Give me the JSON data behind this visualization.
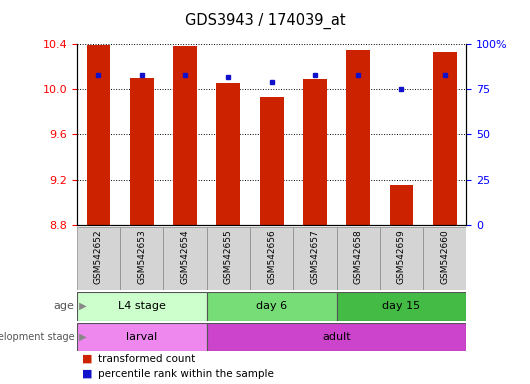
{
  "title": "GDS3943 / 174039_at",
  "samples": [
    "GSM542652",
    "GSM542653",
    "GSM542654",
    "GSM542655",
    "GSM542656",
    "GSM542657",
    "GSM542658",
    "GSM542659",
    "GSM542660"
  ],
  "transformed_count": [
    10.39,
    10.1,
    10.38,
    10.06,
    9.93,
    10.09,
    10.35,
    9.15,
    10.33
  ],
  "percentile_rank": [
    83,
    83,
    83,
    82,
    79,
    83,
    83,
    75,
    83
  ],
  "y_min": 8.8,
  "y_max": 10.4,
  "y_ticks_left": [
    8.8,
    9.2,
    9.6,
    10.0,
    10.4
  ],
  "y_ticks_right": [
    0,
    25,
    50,
    75,
    100
  ],
  "bar_color": "#cc2200",
  "dot_color": "#1111cc",
  "age_groups": [
    {
      "label": "L4 stage",
      "start": 0,
      "end": 3,
      "color": "#ccffcc"
    },
    {
      "label": "day 6",
      "start": 3,
      "end": 6,
      "color": "#77dd77"
    },
    {
      "label": "day 15",
      "start": 6,
      "end": 9,
      "color": "#44bb44"
    }
  ],
  "dev_groups": [
    {
      "label": "larval",
      "start": 0,
      "end": 3,
      "color": "#ee88ee"
    },
    {
      "label": "adult",
      "start": 3,
      "end": 9,
      "color": "#cc44cc"
    }
  ],
  "legend_items": [
    {
      "color": "#cc2200",
      "label": "transformed count"
    },
    {
      "color": "#1111cc",
      "label": "percentile rank within the sample"
    }
  ],
  "fig_width": 5.3,
  "fig_height": 3.84,
  "dpi": 100
}
